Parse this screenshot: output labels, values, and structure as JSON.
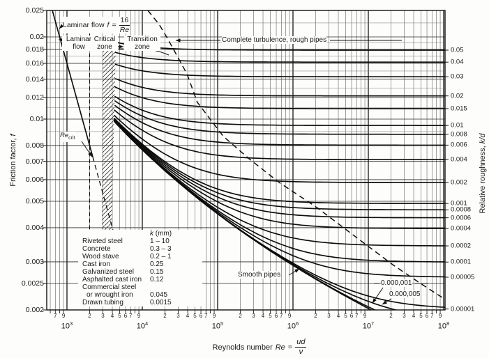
{
  "colors": {
    "ink": "#1a1a1a",
    "curve": "#0d0d0d",
    "grid_minor": "#555555",
    "grid_major": "#141414",
    "paper": "#fdfdfb"
  },
  "labels": {
    "laminar_prefix": "Laminar flow",
    "laminar_var": "f",
    "equals": "=",
    "laminar_num": "16",
    "laminar_den": "Re",
    "zone_laminar_1": "Laminar",
    "zone_laminar_2": "flow",
    "zone_critical_1": "Critical",
    "zone_critical_2": "zone",
    "zone_transition_1": "Transition",
    "zone_transition_2": "zone",
    "complete_turbulence": "Complete turbulence, rough pipes",
    "smooth_pipes": "Smooth pipes",
    "recrit_main": "Re",
    "recrit_sub": "crit",
    "y_left_text": "Friction factor,",
    "y_left_var": "f",
    "y_right_text": "Relative roughness,",
    "y_right_var": "k/d",
    "x_text": "Reynolds number",
    "x_var": "Re",
    "x_num": "ud",
    "x_den": "ν"
  },
  "table": {
    "header_var": "k",
    "header_unit": "(mm)",
    "rows": [
      {
        "material": "Riveted steel",
        "k": "1 – 10"
      },
      {
        "material": "Concrete",
        "k": "0.3 – 3"
      },
      {
        "material": "Wood stave",
        "k": "0.2 – 1"
      },
      {
        "material": "Cast iron",
        "k": "0.25"
      },
      {
        "material": "Galvanized steel",
        "k": "0.15"
      },
      {
        "material": "Asphalted cast iron",
        "k": "0.12"
      },
      {
        "material": "Commercial steel",
        "material2": "or wrought iron",
        "k": "0.045"
      },
      {
        "material": "Drawn tubing",
        "k": "0.0015"
      }
    ]
  },
  "chart_data": {
    "type": "line",
    "title": "Moody diagram — friction factor vs Reynolds number (Fanning)",
    "x_axis": {
      "scale": "log",
      "min": 540,
      "max": 100000000,
      "decade_exponents": [
        3,
        4,
        5,
        6,
        7,
        8
      ],
      "minor_tick_labels": [
        "2",
        "3",
        "4",
        "5",
        "6",
        "7",
        "9"
      ],
      "pre_decade_labels": [
        {
          "value": 700,
          "label": "7"
        },
        {
          "value": 900,
          "label": "9"
        }
      ]
    },
    "y_axis_left": {
      "scale": "log",
      "min": 0.002,
      "max": 0.025,
      "ticks": [
        {
          "value": 0.025,
          "label": "0.025"
        },
        {
          "value": 0.02,
          "label": "0.02"
        },
        {
          "value": 0.018,
          "label": "0.018"
        },
        {
          "value": 0.016,
          "label": "0.016"
        },
        {
          "value": 0.014,
          "label": "0.014"
        },
        {
          "value": 0.012,
          "label": "0.012"
        },
        {
          "value": 0.01,
          "label": "0.01"
        },
        {
          "value": 0.008,
          "label": "0.008"
        },
        {
          "value": 0.007,
          "label": "0.007"
        },
        {
          "value": 0.006,
          "label": "0.006"
        },
        {
          "value": 0.005,
          "label": "0.005"
        },
        {
          "value": 0.004,
          "label": "0.004"
        },
        {
          "value": 0.003,
          "label": "0.003"
        },
        {
          "value": 0.0025,
          "label": "0.0025"
        },
        {
          "value": 0.002,
          "label": "0.002"
        }
      ],
      "minor_gridlines": [
        0.009,
        0.011,
        0.013,
        0.015,
        0.017,
        0.019,
        0.0225
      ]
    },
    "y_axis_right": {
      "ticks": [
        {
          "value": 0.05,
          "label": "0.05"
        },
        {
          "value": 0.04,
          "label": "0.04"
        },
        {
          "value": 0.03,
          "label": "0.03"
        },
        {
          "value": 0.02,
          "label": "0.02"
        },
        {
          "value": 0.015,
          "label": "0.015"
        },
        {
          "value": 0.01,
          "label": "0.01"
        },
        {
          "value": 0.008,
          "label": "0.008"
        },
        {
          "value": 0.006,
          "label": "0.006"
        },
        {
          "value": 0.004,
          "label": "0.004"
        },
        {
          "value": 0.002,
          "label": "0.002"
        },
        {
          "value": 0.001,
          "label": "0.001"
        },
        {
          "value": 0.0008,
          "label": "0.0008"
        },
        {
          "value": 0.0006,
          "label": "0.0006"
        },
        {
          "value": 0.0004,
          "label": "0.0004"
        },
        {
          "value": 0.0002,
          "label": "0.0002"
        },
        {
          "value": 0.0001,
          "label": "0.0001"
        },
        {
          "value": 5e-05,
          "label": "0.00005"
        },
        {
          "value": 1e-05,
          "label": "0.00001"
        }
      ]
    },
    "series": {
      "laminar": {
        "equation": "f = 16/Re",
        "solid_re_range": [
          640,
          2200
        ],
        "dashed_re_range": [
          2200,
          5200
        ]
      },
      "critical_re": 2000,
      "smooth_pipe_kd": 0,
      "roughness_kd": [
        0.05,
        0.04,
        0.03,
        0.02,
        0.015,
        0.01,
        0.008,
        0.006,
        0.004,
        0.002,
        0.001,
        0.0008,
        0.0006,
        0.0004,
        0.0002,
        0.0001,
        5e-05,
        1e-05,
        5e-06,
        1e-06
      ],
      "turbulent_model": "Colebrook: 1/sqrt(4f) = -2 log10( (k/d)/3.7 + 2.51/(Re sqrt(4f)) )"
    },
    "boundary_dashed_logRe_f": [
      [
        4.074,
        0.025
      ],
      [
        4.222,
        0.02225
      ],
      [
        4.333,
        0.01977
      ],
      [
        4.481,
        0.01667
      ],
      [
        4.593,
        0.01465
      ],
      [
        4.731,
        0.01152
      ],
      [
        5.074,
        0.008655
      ],
      [
        5.417,
        0.00716
      ],
      [
        5.815,
        0.005865
      ],
      [
        6.324,
        0.004729
      ],
      [
        6.833,
        0.003701
      ],
      [
        7.324,
        0.002929
      ],
      [
        7.667,
        0.002528
      ],
      [
        8.019,
        0.002186
      ]
    ],
    "annotated_kd": [
      {
        "kd": 1e-06,
        "label": "0.000,001"
      },
      {
        "kd": 5e-06,
        "label": "0.000,005"
      }
    ]
  }
}
